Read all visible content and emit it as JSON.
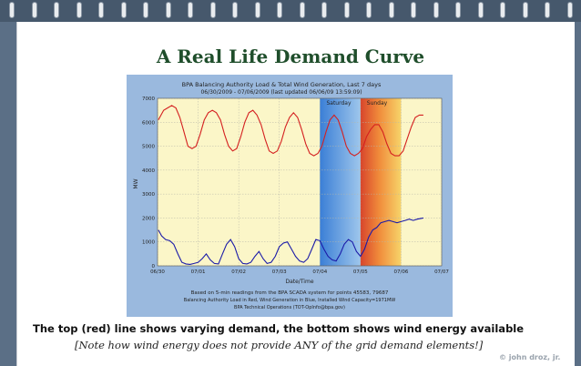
{
  "slide": {
    "title": "A Real Life Demand Curve",
    "caption": "The top (red) line shows varying demand, the bottom shows wind energy available",
    "note": "[Note how wind energy does not provide ANY of the grid demand elements!]",
    "copyright": "© john droz, jr."
  },
  "colors": {
    "binding": "#46586c",
    "title": "#1f4e2b",
    "chart_frame": "#9ab9de",
    "plot_bg": "#fbf6c8",
    "load": "#d42020",
    "wind": "#1b1ba8"
  },
  "chart_data": {
    "type": "line",
    "title": "BPA Balancing Authority Load & Total Wind Generation, Last 7 days",
    "subtitle": "06/30/2009 - 07/06/2009 (last updated 06/06/09 13:59:09)",
    "xlabel": "Date/Time",
    "ylabel": "MW",
    "ylim": [
      0,
      7000
    ],
    "yticks": [
      0,
      1000,
      2000,
      3000,
      4000,
      5000,
      6000,
      7000
    ],
    "xlim": [
      0,
      7
    ],
    "xticks": [
      "06/30",
      "07/01",
      "07/02",
      "07/03",
      "07/04",
      "07/05",
      "07/06",
      "07/07"
    ],
    "annotations": [
      "Saturday",
      "Sunday"
    ],
    "grid": true,
    "footnote": [
      "Based on 5-min readings from the BPA SCADA system for points 45583, 79687",
      "Balancing Authority Load in Red, Wind Generation in Blue, Installed Wind Capacity=1971MW",
      "BPA Technical Operations (TOT-OpInfo@bpa.gov)"
    ],
    "series": [
      {
        "name": "Load",
        "x": [
          0.02,
          0.15,
          0.25,
          0.35,
          0.45,
          0.55,
          0.65,
          0.75,
          0.85,
          0.95,
          1.05,
          1.15,
          1.25,
          1.35,
          1.45,
          1.55,
          1.65,
          1.75,
          1.85,
          1.95,
          2.05,
          2.15,
          2.25,
          2.35,
          2.45,
          2.55,
          2.65,
          2.75,
          2.85,
          2.95,
          3.05,
          3.15,
          3.25,
          3.35,
          3.45,
          3.55,
          3.65,
          3.75,
          3.85,
          3.95,
          4.05,
          4.15,
          4.25,
          4.35,
          4.45,
          4.55,
          4.65,
          4.75,
          4.85,
          4.95,
          5.05,
          5.15,
          5.25,
          5.35,
          5.45,
          5.55,
          5.65,
          5.75,
          5.85,
          5.95,
          6.05,
          6.15,
          6.25,
          6.35,
          6.45,
          6.55
        ],
        "y": [
          6100,
          6500,
          6600,
          6700,
          6600,
          6200,
          5600,
          5000,
          4900,
          5000,
          5500,
          6100,
          6400,
          6500,
          6400,
          6100,
          5500,
          5000,
          4800,
          4900,
          5400,
          6000,
          6400,
          6500,
          6300,
          5900,
          5300,
          4800,
          4700,
          4800,
          5200,
          5800,
          6200,
          6400,
          6200,
          5700,
          5100,
          4700,
          4600,
          4700,
          5000,
          5600,
          6100,
          6300,
          6100,
          5600,
          5000,
          4700,
          4600,
          4700,
          4900,
          5400,
          5700,
          5900,
          5900,
          5600,
          5100,
          4700,
          4600,
          4600,
          4800,
          5300,
          5800,
          6200,
          6300,
          6300
        ]
      },
      {
        "name": "Wind",
        "x": [
          0.02,
          0.1,
          0.2,
          0.3,
          0.4,
          0.5,
          0.6,
          0.7,
          0.8,
          0.9,
          1.0,
          1.1,
          1.2,
          1.3,
          1.4,
          1.5,
          1.6,
          1.7,
          1.8,
          1.9,
          2.0,
          2.1,
          2.2,
          2.3,
          2.4,
          2.5,
          2.6,
          2.7,
          2.8,
          2.9,
          3.0,
          3.1,
          3.2,
          3.3,
          3.4,
          3.5,
          3.6,
          3.7,
          3.8,
          3.9,
          4.0,
          4.1,
          4.2,
          4.3,
          4.4,
          4.5,
          4.6,
          4.7,
          4.8,
          4.9,
          5.0,
          5.1,
          5.2,
          5.3,
          5.4,
          5.5,
          5.6,
          5.7,
          5.8,
          5.9,
          6.0,
          6.1,
          6.2,
          6.3,
          6.4,
          6.55
        ],
        "y": [
          1500,
          1250,
          1100,
          1050,
          900,
          500,
          150,
          80,
          60,
          100,
          150,
          300,
          500,
          250,
          100,
          80,
          500,
          900,
          1100,
          800,
          300,
          100,
          80,
          150,
          400,
          600,
          300,
          100,
          150,
          400,
          800,
          950,
          1000,
          700,
          400,
          200,
          150,
          300,
          700,
          1100,
          1050,
          700,
          400,
          250,
          200,
          500,
          900,
          1100,
          1000,
          600,
          400,
          700,
          1200,
          1500,
          1600,
          1800,
          1850,
          1900,
          1850,
          1800,
          1850,
          1900,
          1950,
          1900,
          1950,
          2000
        ]
      }
    ]
  }
}
